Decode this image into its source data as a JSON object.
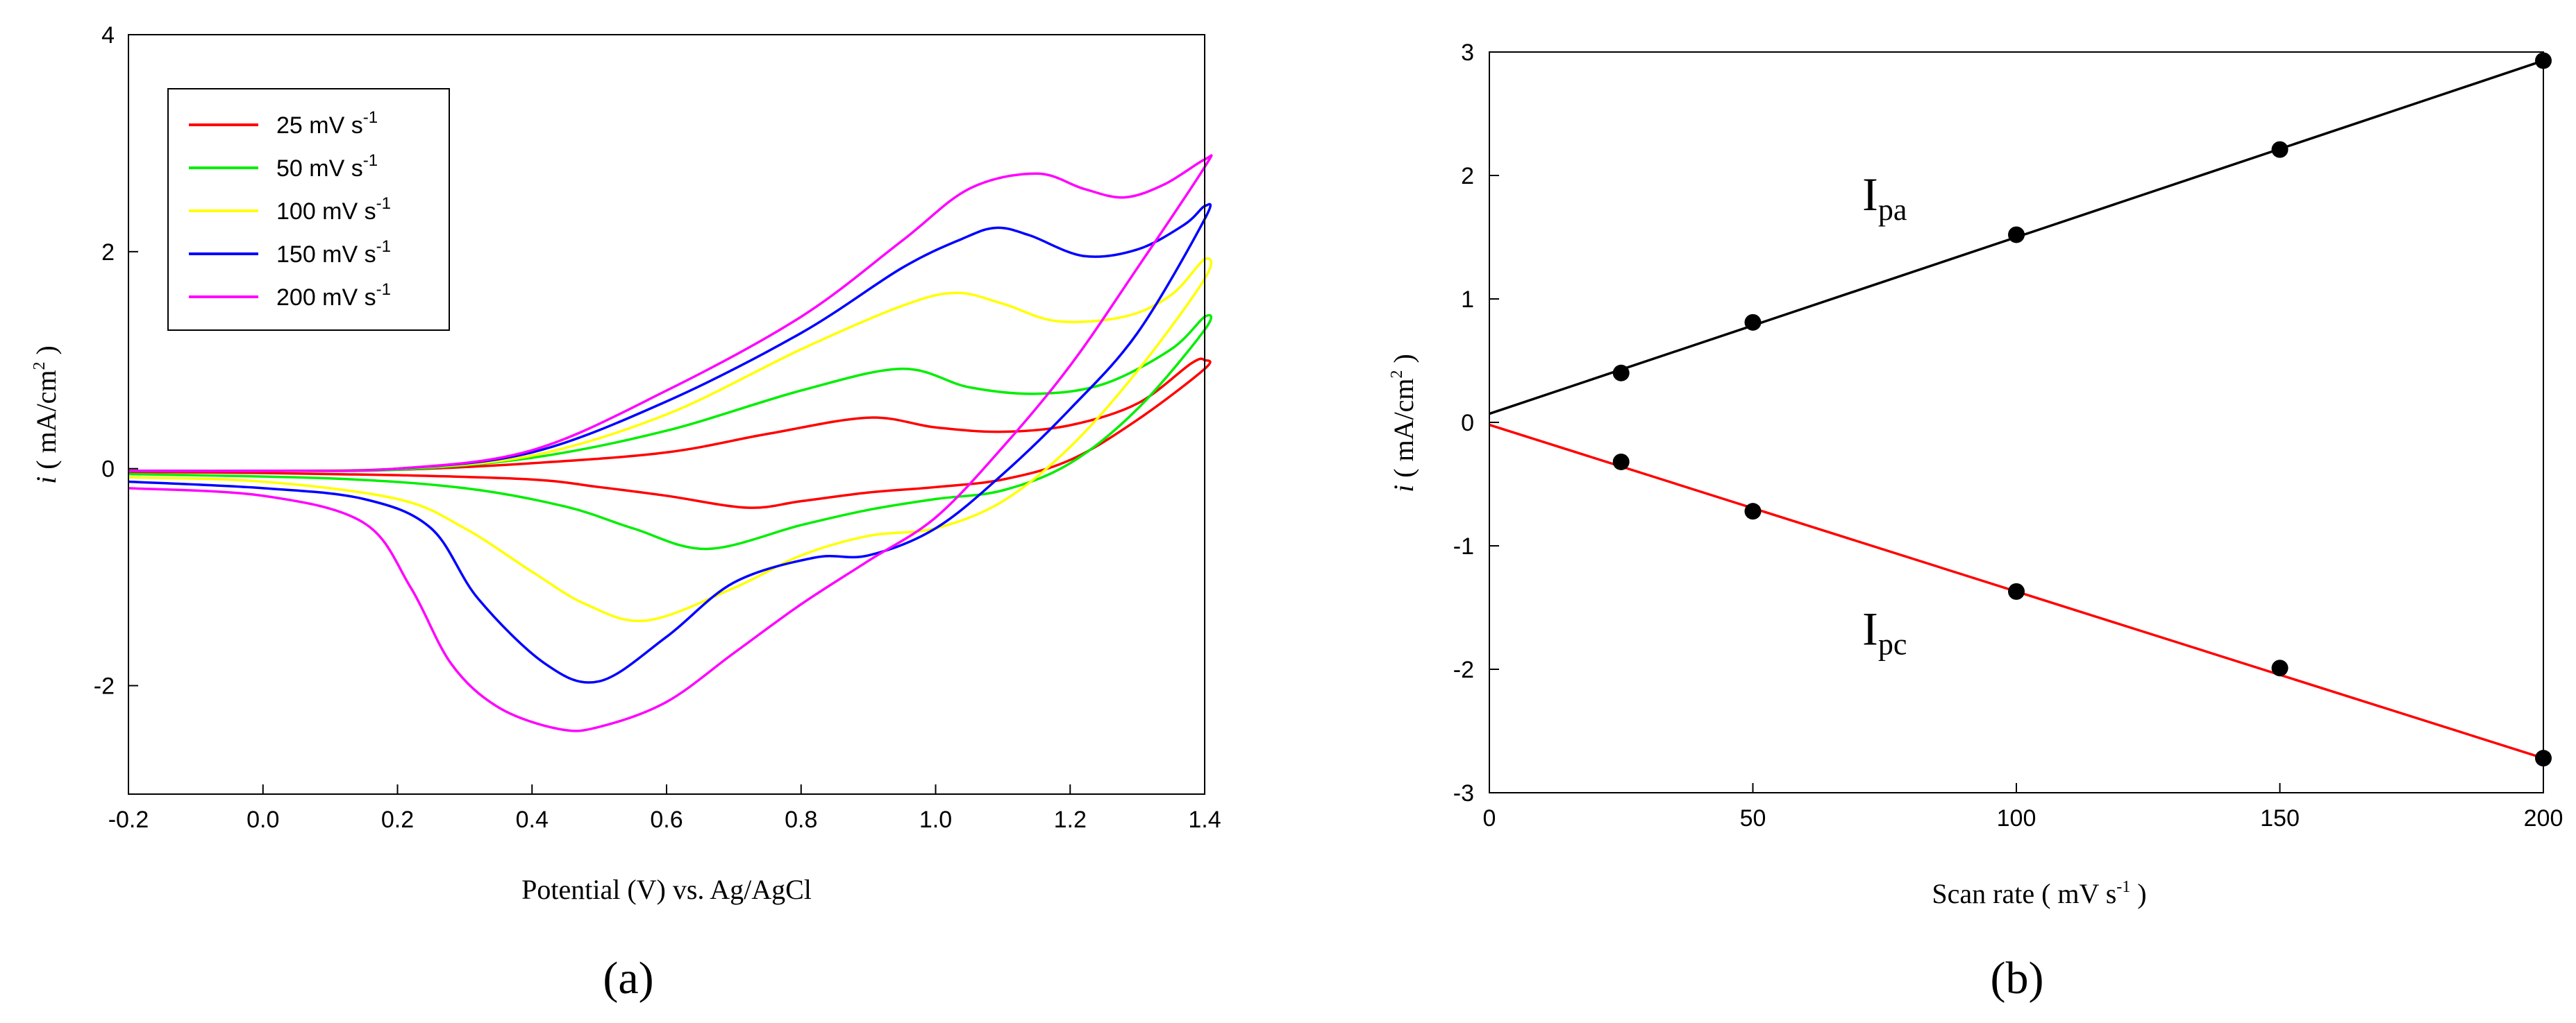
{
  "chart_data": [
    {
      "type": "line",
      "caption": "(a)",
      "xlabel": "Potential (V) vs. Ag/AgCl",
      "ylabel": {
        "italic": "i",
        "text": " ( mA/cm",
        "sup": "2",
        "close": " )"
      },
      "xlim": [
        -0.2,
        1.4
      ],
      "ylim": [
        -3,
        4
      ],
      "xticks": [
        -0.2,
        0.0,
        0.2,
        0.4,
        0.6,
        0.8,
        1.0,
        1.2,
        1.4
      ],
      "xtick_labels": [
        "-0.2",
        "0.0",
        "0.2",
        "0.4",
        "0.6",
        "0.8",
        "1.0",
        "1.2",
        "1.4"
      ],
      "yticks": [
        -2,
        0,
        2,
        4
      ],
      "ytick_labels": [
        "-2",
        "0",
        "2",
        "4"
      ],
      "legend_position": "top-left",
      "series": [
        {
          "name": "25 mV s",
          "sup": "-1",
          "color": "#ff0000",
          "forward": [
            [
              -0.2,
              -0.02
            ],
            [
              0.0,
              -0.02
            ],
            [
              0.2,
              -0.01
            ],
            [
              0.4,
              0.05
            ],
            [
              0.6,
              0.15
            ],
            [
              0.75,
              0.32
            ],
            [
              0.9,
              0.47
            ],
            [
              1.0,
              0.38
            ],
            [
              1.1,
              0.34
            ],
            [
              1.2,
              0.4
            ],
            [
              1.3,
              0.6
            ],
            [
              1.38,
              0.97
            ],
            [
              1.4,
              1.0
            ]
          ],
          "reverse": [
            [
              1.4,
              0.92
            ],
            [
              1.3,
              0.45
            ],
            [
              1.2,
              0.08
            ],
            [
              1.1,
              -0.1
            ],
            [
              1.0,
              -0.17
            ],
            [
              0.9,
              -0.22
            ],
            [
              0.8,
              -0.3
            ],
            [
              0.72,
              -0.36
            ],
            [
              0.6,
              -0.25
            ],
            [
              0.5,
              -0.17
            ],
            [
              0.4,
              -0.1
            ],
            [
              0.2,
              -0.06
            ],
            [
              0.0,
              -0.04
            ],
            [
              -0.2,
              -0.03
            ]
          ]
        },
        {
          "name": "50 mV s",
          "sup": "-1",
          "color": "#00ee00",
          "forward": [
            [
              -0.2,
              -0.02
            ],
            [
              0.0,
              -0.02
            ],
            [
              0.2,
              -0.01
            ],
            [
              0.4,
              0.1
            ],
            [
              0.6,
              0.35
            ],
            [
              0.8,
              0.72
            ],
            [
              0.95,
              0.92
            ],
            [
              1.05,
              0.75
            ],
            [
              1.15,
              0.69
            ],
            [
              1.25,
              0.78
            ],
            [
              1.35,
              1.1
            ],
            [
              1.4,
              1.4
            ]
          ],
          "reverse": [
            [
              1.4,
              1.28
            ],
            [
              1.3,
              0.55
            ],
            [
              1.2,
              0.05
            ],
            [
              1.1,
              -0.2
            ],
            [
              1.0,
              -0.28
            ],
            [
              0.9,
              -0.38
            ],
            [
              0.8,
              -0.52
            ],
            [
              0.66,
              -0.74
            ],
            [
              0.55,
              -0.55
            ],
            [
              0.45,
              -0.35
            ],
            [
              0.3,
              -0.18
            ],
            [
              0.1,
              -0.09
            ],
            [
              -0.2,
              -0.05
            ]
          ]
        },
        {
          "name": "100 mV s",
          "sup": "-1",
          "color": "#ffff00",
          "forward": [
            [
              -0.2,
              -0.02
            ],
            [
              0.0,
              -0.02
            ],
            [
              0.2,
              0.0
            ],
            [
              0.4,
              0.12
            ],
            [
              0.6,
              0.5
            ],
            [
              0.8,
              1.1
            ],
            [
              0.95,
              1.5
            ],
            [
              1.03,
              1.62
            ],
            [
              1.1,
              1.52
            ],
            [
              1.18,
              1.36
            ],
            [
              1.28,
              1.4
            ],
            [
              1.35,
              1.6
            ],
            [
              1.4,
              1.93
            ]
          ],
          "reverse": [
            [
              1.4,
              1.75
            ],
            [
              1.3,
              0.9
            ],
            [
              1.2,
              0.2
            ],
            [
              1.1,
              -0.3
            ],
            [
              1.0,
              -0.55
            ],
            [
              0.9,
              -0.62
            ],
            [
              0.8,
              -0.8
            ],
            [
              0.7,
              -1.1
            ],
            [
              0.57,
              -1.4
            ],
            [
              0.48,
              -1.25
            ],
            [
              0.4,
              -0.95
            ],
            [
              0.3,
              -0.55
            ],
            [
              0.2,
              -0.28
            ],
            [
              0.0,
              -0.12
            ],
            [
              -0.2,
              -0.08
            ]
          ]
        },
        {
          "name": "150 mV s",
          "sup": "-1",
          "color": "#0000ff",
          "forward": [
            [
              -0.2,
              -0.02
            ],
            [
              0.0,
              -0.02
            ],
            [
              0.2,
              0.0
            ],
            [
              0.4,
              0.15
            ],
            [
              0.6,
              0.62
            ],
            [
              0.8,
              1.25
            ],
            [
              0.95,
              1.85
            ],
            [
              1.04,
              2.12
            ],
            [
              1.09,
              2.22
            ],
            [
              1.14,
              2.15
            ],
            [
              1.22,
              1.96
            ],
            [
              1.3,
              2.02
            ],
            [
              1.37,
              2.25
            ],
            [
              1.4,
              2.42
            ]
          ],
          "reverse": [
            [
              1.4,
              2.3
            ],
            [
              1.3,
              1.25
            ],
            [
              1.2,
              0.55
            ],
            [
              1.1,
              -0.05
            ],
            [
              1.0,
              -0.55
            ],
            [
              0.9,
              -0.8
            ],
            [
              0.82,
              -0.82
            ],
            [
              0.7,
              -1.05
            ],
            [
              0.6,
              -1.55
            ],
            [
              0.5,
              -1.96
            ],
            [
              0.42,
              -1.8
            ],
            [
              0.32,
              -1.2
            ],
            [
              0.25,
              -0.55
            ],
            [
              0.15,
              -0.28
            ],
            [
              0.0,
              -0.18
            ],
            [
              -0.2,
              -0.12
            ]
          ]
        },
        {
          "name": "200 mV s",
          "sup": "-1",
          "color": "#ff00ff",
          "forward": [
            [
              -0.2,
              -0.02
            ],
            [
              0.0,
              -0.02
            ],
            [
              0.2,
              0.0
            ],
            [
              0.4,
              0.17
            ],
            [
              0.6,
              0.72
            ],
            [
              0.8,
              1.4
            ],
            [
              0.95,
              2.1
            ],
            [
              1.05,
              2.58
            ],
            [
              1.15,
              2.72
            ],
            [
              1.22,
              2.58
            ],
            [
              1.28,
              2.5
            ],
            [
              1.34,
              2.62
            ],
            [
              1.4,
              2.85
            ]
          ],
          "reverse": [
            [
              1.4,
              2.78
            ],
            [
              1.3,
              1.85
            ],
            [
              1.2,
              0.95
            ],
            [
              1.1,
              0.2
            ],
            [
              1.0,
              -0.45
            ],
            [
              0.9,
              -0.85
            ],
            [
              0.8,
              -1.25
            ],
            [
              0.7,
              -1.7
            ],
            [
              0.6,
              -2.15
            ],
            [
              0.5,
              -2.38
            ],
            [
              0.44,
              -2.4
            ],
            [
              0.35,
              -2.2
            ],
            [
              0.28,
              -1.8
            ],
            [
              0.22,
              -1.1
            ],
            [
              0.15,
              -0.5
            ],
            [
              0.0,
              -0.25
            ],
            [
              -0.2,
              -0.18
            ]
          ]
        }
      ]
    },
    {
      "type": "scatter",
      "caption": "(b)",
      "xlabel": {
        "text": "Scan rate ( mV s",
        "sup": "-1",
        "close": " )"
      },
      "ylabel": {
        "italic": "i",
        "text": " ( mA/cm",
        "sup": "2",
        "close": " )"
      },
      "xlim": [
        0,
        200
      ],
      "ylim": [
        -3,
        3
      ],
      "xticks": [
        0,
        50,
        100,
        150,
        200
      ],
      "xtick_labels": [
        "0",
        "50",
        "100",
        "150",
        "200"
      ],
      "yticks": [
        -3,
        -2,
        -1,
        0,
        1,
        2,
        3
      ],
      "ytick_labels": [
        "-3",
        "-2",
        "-1",
        "0",
        "1",
        "2",
        "3"
      ],
      "series": [
        {
          "name": "Ipa",
          "label": "I",
          "sub": "pa",
          "color": "#000000",
          "x": [
            25,
            50,
            100,
            150,
            200
          ],
          "y": [
            0.4,
            0.81,
            1.52,
            2.21,
            2.93
          ],
          "fit": {
            "x": [
              0,
              200
            ],
            "y": [
              0.07,
              2.93
            ]
          },
          "label_at": [
            75,
            1.72
          ]
        },
        {
          "name": "Ipc",
          "label": "I",
          "sub": "pc",
          "color": "#ff0000",
          "x": [
            25,
            50,
            100,
            150,
            200
          ],
          "y": [
            -0.32,
            -0.72,
            -1.37,
            -1.99,
            -2.72
          ],
          "fit": {
            "x": [
              0,
              200
            ],
            "y": [
              -0.02,
              -2.72
            ]
          },
          "label_at": [
            75,
            -1.8
          ]
        }
      ]
    }
  ]
}
